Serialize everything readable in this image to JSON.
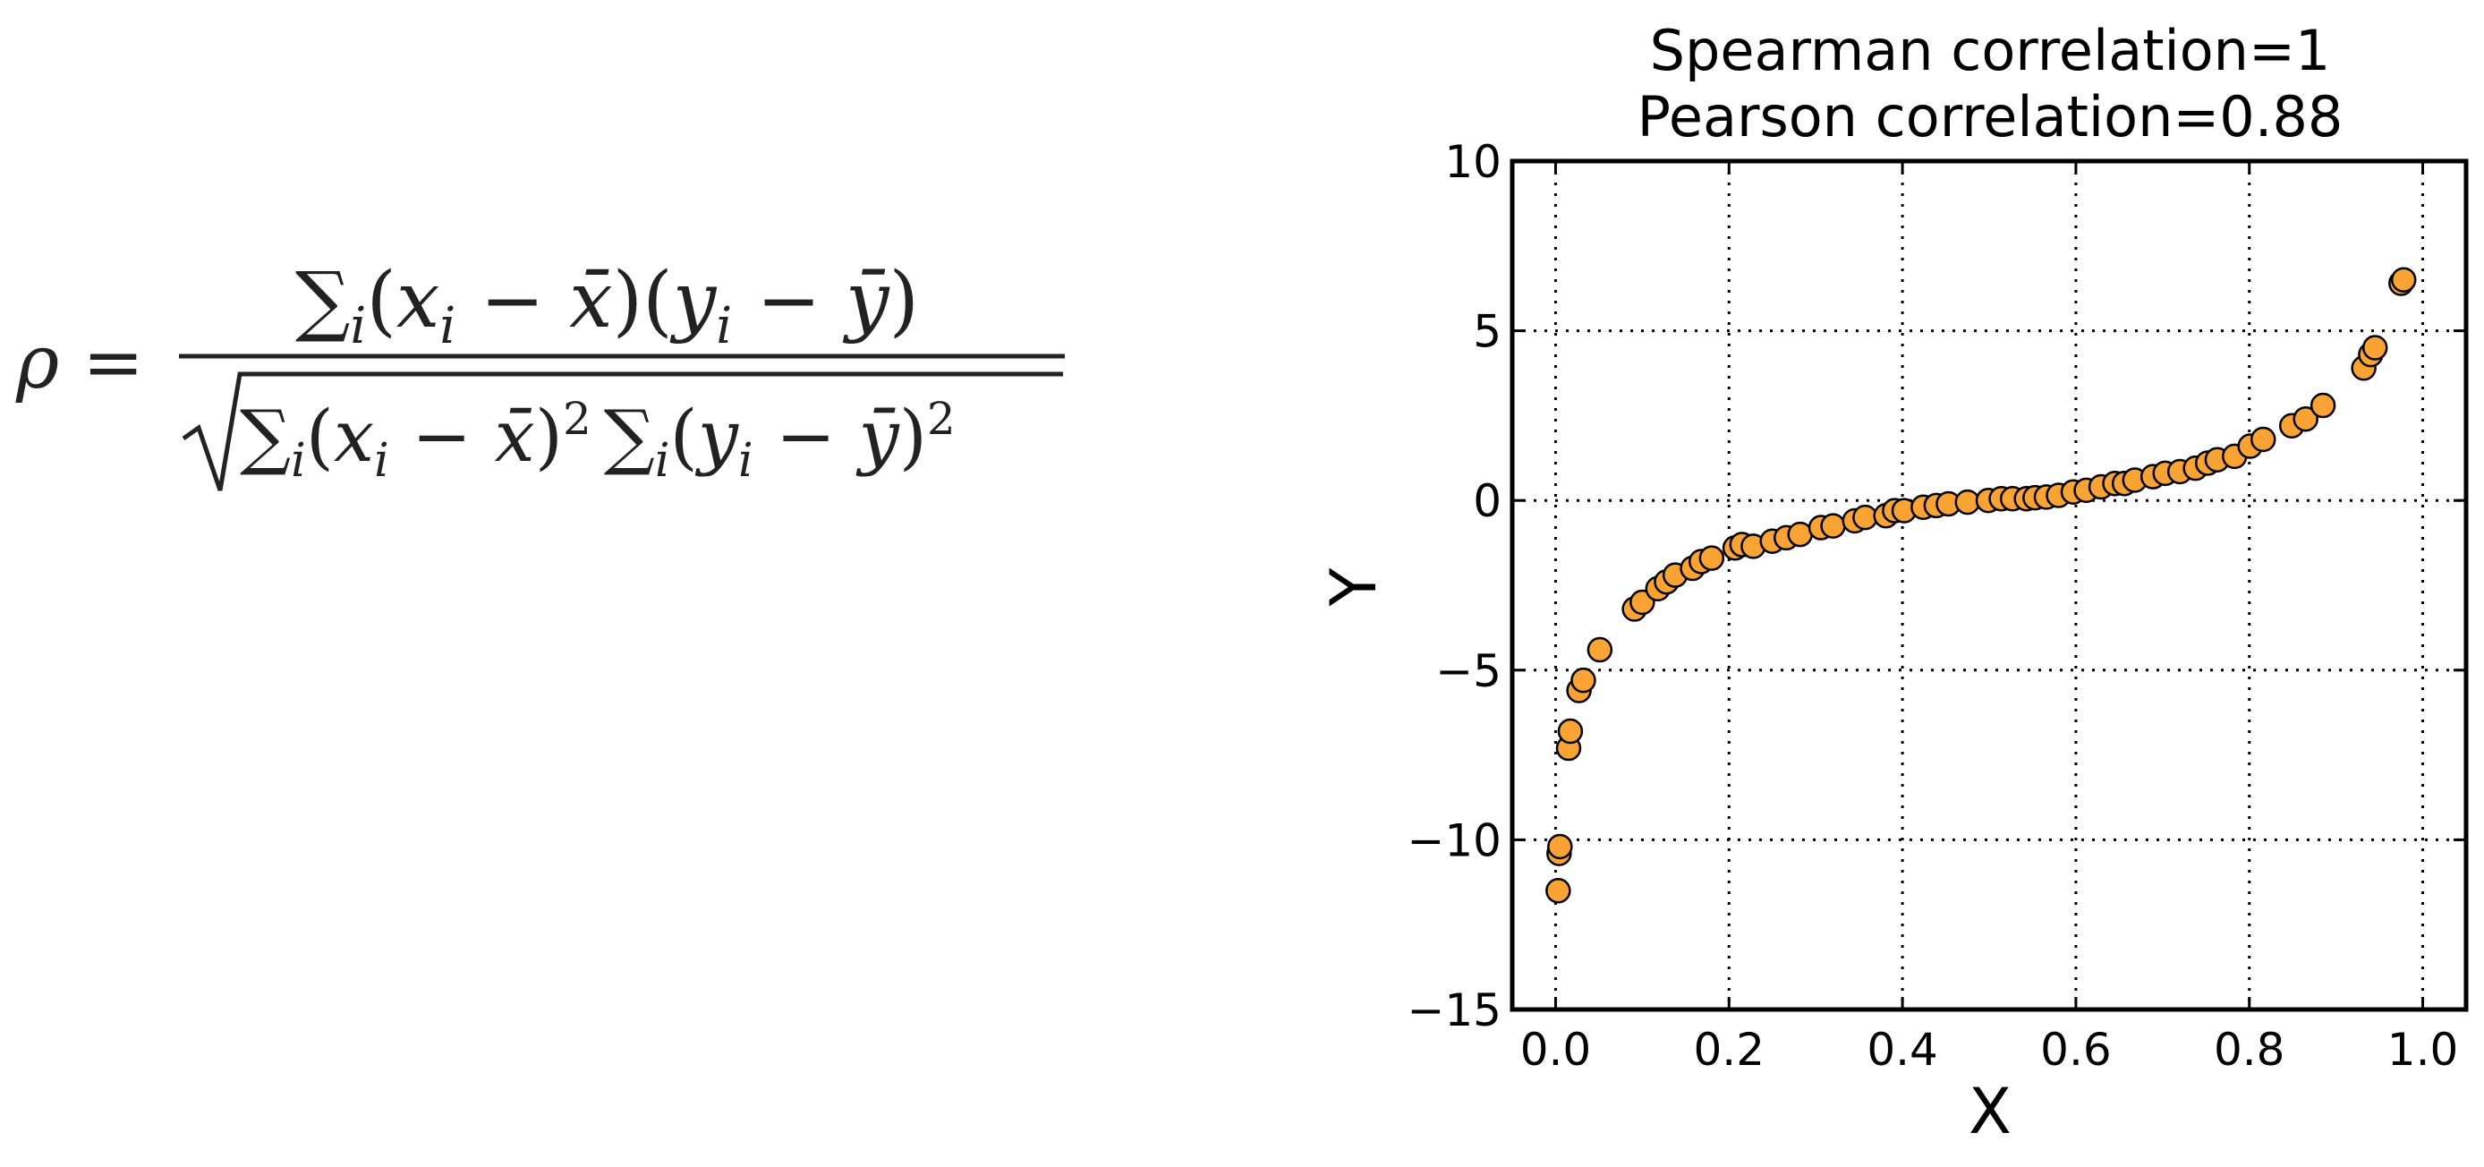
{
  "formula": {
    "lhs": "ρ =",
    "numerator": {
      "sum": "∑",
      "sub": "i",
      "body_a": "(",
      "x": "x",
      "xi": "i",
      "minus1": " − ",
      "xbar": "x̄",
      "close1": ")(",
      "y": "y",
      "yi": "i",
      "minus2": " − ",
      "ybar": "ȳ",
      "close2": ")"
    },
    "denominator": {
      "sum1": "∑",
      "sub1": "i",
      "part1": "(",
      "x": "x",
      "xi": "i",
      "minus1": " − ",
      "xbar": "x̄",
      "close1": ")",
      "sq1": "2",
      "sum2": "∑",
      "sub2": "i",
      "part2": "(",
      "y": "y",
      "yi": "i",
      "minus2": " − ",
      "ybar": "ȳ",
      "close2": ")",
      "sq2": "2"
    }
  },
  "colors": {
    "marker_fill": "#f9a334",
    "marker_edge": "#000000",
    "grid": "#000000",
    "formula": "#222222"
  },
  "chart_data": {
    "type": "scatter",
    "title": [
      "Spearman correlation=1",
      "Pearson correlation=0.88"
    ],
    "xlabel": "X",
    "ylabel": "Y",
    "xlim": [
      -0.05,
      1.05
    ],
    "ylim": [
      -15,
      10
    ],
    "xticks": [
      0.0,
      0.2,
      0.4,
      0.6,
      0.8,
      1.0
    ],
    "xtick_labels": [
      "0.0",
      "0.2",
      "0.4",
      "0.6",
      "0.8",
      "1.0"
    ],
    "yticks": [
      10,
      5,
      0,
      -5,
      -10,
      -15
    ],
    "ytick_labels": [
      "10",
      "5",
      "0",
      "−5",
      "−10",
      "−15"
    ],
    "grid": true,
    "grid_style": "dotted",
    "marker": "circle",
    "points": [
      [
        0.003,
        -11.5
      ],
      [
        0.004,
        -10.4
      ],
      [
        0.005,
        -10.2
      ],
      [
        0.015,
        -7.3
      ],
      [
        0.017,
        -6.8
      ],
      [
        0.027,
        -5.6
      ],
      [
        0.032,
        -5.3
      ],
      [
        0.051,
        -4.4
      ],
      [
        0.091,
        -3.2
      ],
      [
        0.1,
        -3.0
      ],
      [
        0.118,
        -2.6
      ],
      [
        0.128,
        -2.4
      ],
      [
        0.138,
        -2.2
      ],
      [
        0.158,
        -2.0
      ],
      [
        0.168,
        -1.8
      ],
      [
        0.18,
        -1.7
      ],
      [
        0.207,
        -1.4
      ],
      [
        0.215,
        -1.3
      ],
      [
        0.228,
        -1.35
      ],
      [
        0.25,
        -1.2
      ],
      [
        0.266,
        -1.1
      ],
      [
        0.282,
        -1.0
      ],
      [
        0.306,
        -0.8
      ],
      [
        0.32,
        -0.75
      ],
      [
        0.345,
        -0.6
      ],
      [
        0.357,
        -0.5
      ],
      [
        0.381,
        -0.45
      ],
      [
        0.391,
        -0.3
      ],
      [
        0.402,
        -0.3
      ],
      [
        0.424,
        -0.2
      ],
      [
        0.439,
        -0.15
      ],
      [
        0.453,
        -0.1
      ],
      [
        0.475,
        -0.05
      ],
      [
        0.499,
        0.0
      ],
      [
        0.514,
        0.05
      ],
      [
        0.527,
        0.05
      ],
      [
        0.543,
        0.05
      ],
      [
        0.553,
        0.08
      ],
      [
        0.566,
        0.1
      ],
      [
        0.58,
        0.15
      ],
      [
        0.597,
        0.25
      ],
      [
        0.612,
        0.3
      ],
      [
        0.629,
        0.4
      ],
      [
        0.645,
        0.5
      ],
      [
        0.656,
        0.5
      ],
      [
        0.668,
        0.6
      ],
      [
        0.689,
        0.7
      ],
      [
        0.703,
        0.8
      ],
      [
        0.72,
        0.85
      ],
      [
        0.738,
        0.95
      ],
      [
        0.752,
        1.1
      ],
      [
        0.763,
        1.2
      ],
      [
        0.783,
        1.3
      ],
      [
        0.801,
        1.6
      ],
      [
        0.816,
        1.8
      ],
      [
        0.849,
        2.2
      ],
      [
        0.865,
        2.4
      ],
      [
        0.885,
        2.8
      ],
      [
        0.932,
        3.9
      ],
      [
        0.94,
        4.3
      ],
      [
        0.945,
        4.5
      ],
      [
        0.975,
        6.4
      ],
      [
        0.978,
        6.5
      ]
    ]
  }
}
